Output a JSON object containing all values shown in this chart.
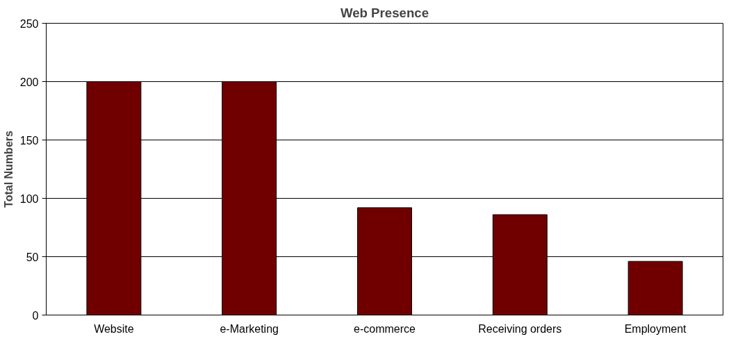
{
  "chart_data": {
    "type": "bar",
    "title": "Web Presence",
    "ylabel": "Total Numbers",
    "categories": [
      "Website",
      "e-Marketing",
      "e-commerce",
      "Receiving orders",
      "Employment"
    ],
    "values": [
      200,
      200,
      92,
      86,
      46
    ],
    "color": "#700000",
    "ylim": [
      0,
      250
    ],
    "yticks": [
      0,
      50,
      100,
      150,
      200,
      250
    ],
    "grid": "y"
  }
}
